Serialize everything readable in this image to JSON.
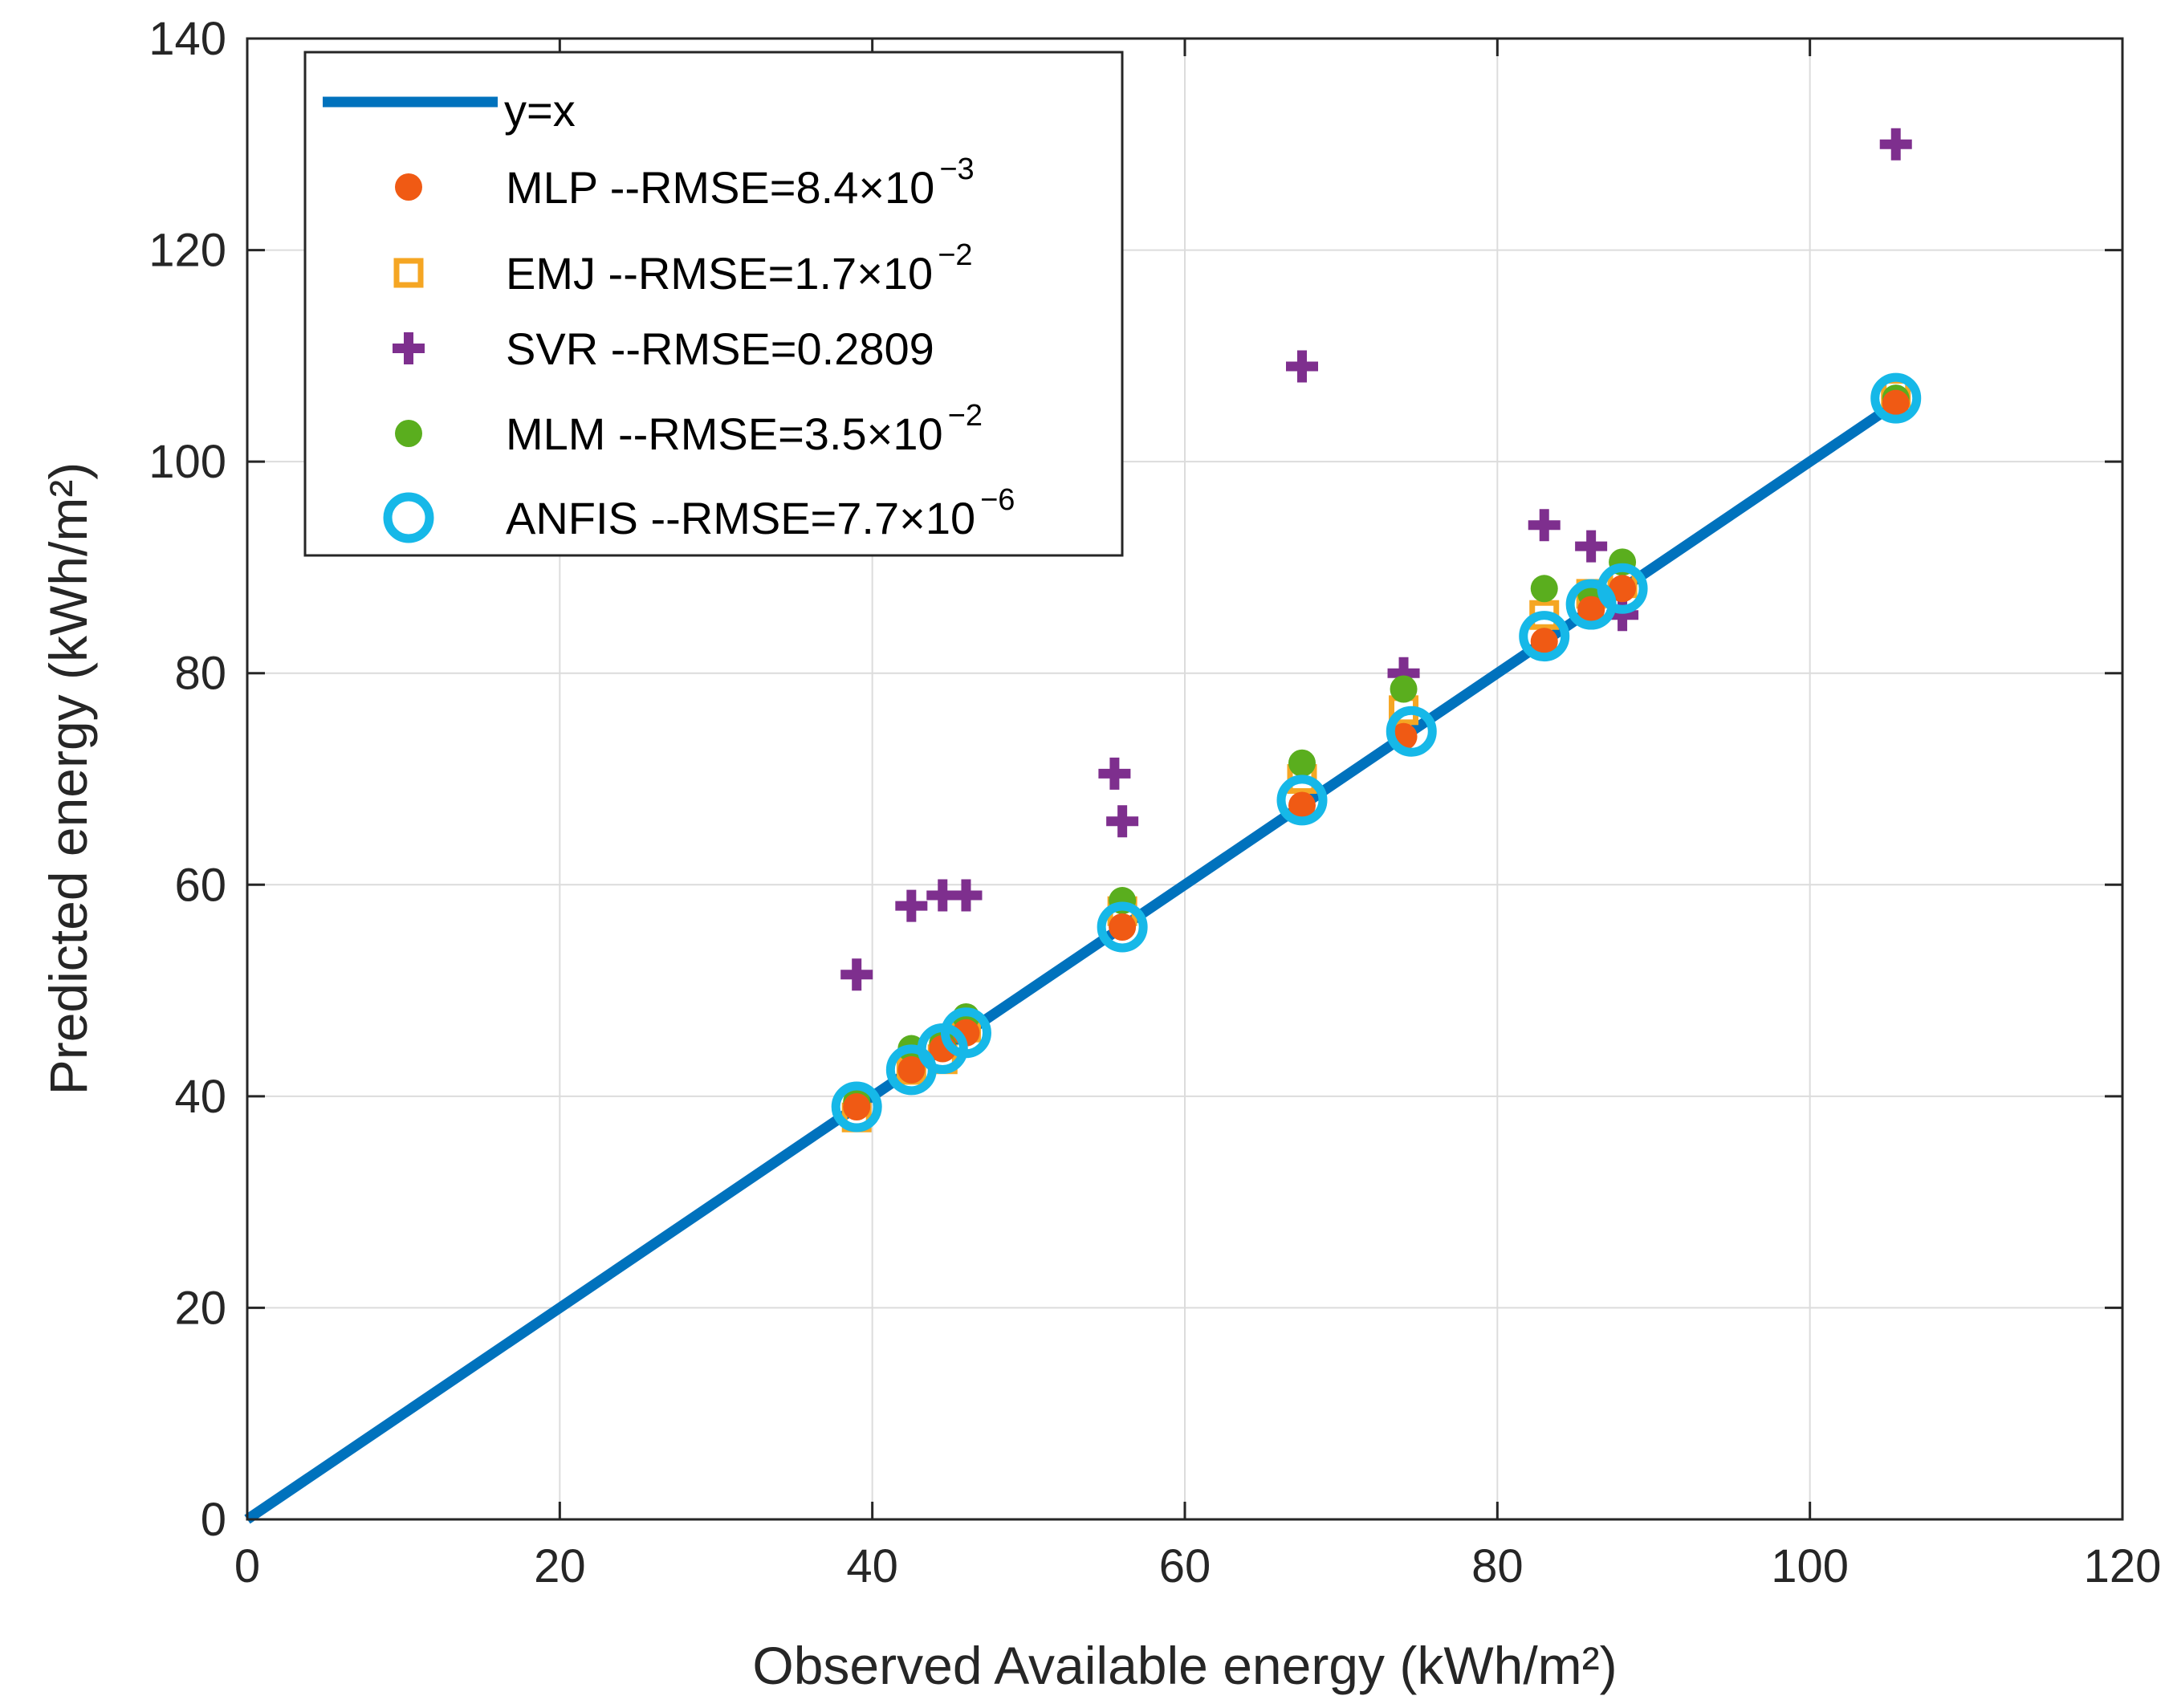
{
  "chart_data": {
    "type": "scatter",
    "xlabel": "Observed Available energy (kWh/m²)",
    "ylabel": "Predicted energy (kWh/m²)",
    "xlim": [
      0,
      120
    ],
    "ylim": [
      0,
      140
    ],
    "xticks": [
      0,
      20,
      40,
      60,
      80,
      100,
      120
    ],
    "yticks": [
      0,
      20,
      40,
      60,
      80,
      100,
      120,
      140
    ],
    "grid": true,
    "legend_position": "top-left",
    "colors": {
      "line": "#0072BD",
      "mlp": "#F05A14",
      "emj": "#F5A623",
      "svr": "#7E2F8E",
      "mlm": "#5AAE1E",
      "anfis": "#16B8E8"
    },
    "series": [
      {
        "name": "y=x",
        "label": "y=x",
        "marker": "line",
        "x": [
          0,
          105.5
        ],
        "y": [
          0,
          105.5
        ]
      },
      {
        "name": "MLP",
        "label": "MLP --RMSE=8.4×10",
        "exponent": "−3",
        "marker": "filled-circle",
        "x": [
          39,
          42.5,
          44.5,
          46,
          56,
          67.5,
          74,
          83,
          86,
          88,
          105.5
        ],
        "y": [
          39,
          42.5,
          44.5,
          46,
          56,
          67.5,
          74,
          83,
          86,
          88,
          105.5
        ]
      },
      {
        "name": "EMJ",
        "label": "EMJ --RMSE=1.7×10",
        "exponent": "−2",
        "marker": "square",
        "x": [
          39,
          42.5,
          44.5,
          46,
          56,
          67.5,
          74,
          83,
          86,
          88,
          105.5
        ],
        "y": [
          38,
          42.5,
          43.5,
          46.5,
          57.5,
          70,
          76.5,
          85.5,
          87.5,
          88.5,
          106.5
        ]
      },
      {
        "name": "SVR",
        "label": "SVR --RMSE=0.2809",
        "exponent": "",
        "marker": "plus",
        "x": [
          39,
          42.5,
          44.5,
          46,
          55.5,
          56,
          67.5,
          74,
          83,
          86,
          88,
          105.5
        ],
        "y": [
          51.5,
          58,
          59,
          59,
          70.5,
          66,
          109,
          80,
          94,
          92,
          85.5,
          130
        ]
      },
      {
        "name": "MLM",
        "label": "MLM --RMSE=3.5×10",
        "exponent": "−2",
        "marker": "filled-circle",
        "x": [
          39,
          42.5,
          44.5,
          46,
          56,
          67.5,
          74,
          83,
          86,
          88,
          105.5
        ],
        "y": [
          39.5,
          44.5,
          45,
          47.5,
          58.5,
          71.5,
          78.5,
          88,
          87.5,
          90.5,
          106
        ]
      },
      {
        "name": "ANFIS",
        "label": "ANFIS --RMSE=7.7×10",
        "exponent": "−6",
        "marker": "open-circle",
        "x": [
          39,
          42.5,
          44.5,
          46,
          56,
          67.5,
          74.5,
          83,
          86,
          88,
          105.5
        ],
        "y": [
          39,
          42.5,
          44.5,
          46,
          56,
          68,
          74.5,
          83.5,
          86.5,
          88,
          106
        ]
      }
    ]
  }
}
